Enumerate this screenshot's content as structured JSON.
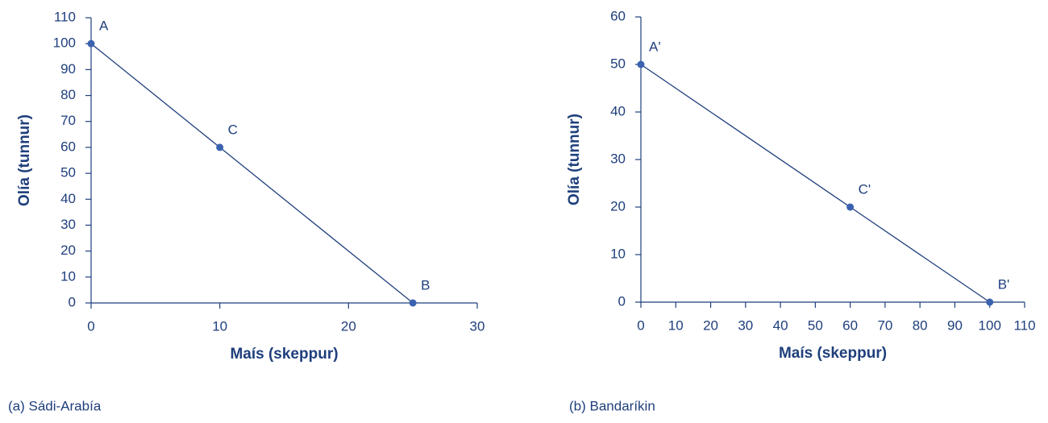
{
  "chart_data": [
    {
      "type": "line",
      "caption": "(a) Sádi-Arabía",
      "xlabel": "Maís (skeppur)",
      "ylabel": "Olía (tunnur)",
      "x": [
        0,
        10,
        25
      ],
      "values": [
        100,
        60,
        0
      ],
      "point_labels": [
        "A",
        "C",
        "B"
      ],
      "color": "#3a62b0",
      "line_color": "#1f3f7c",
      "xlim": [
        0,
        30
      ],
      "xticks": [
        0,
        10,
        20,
        30
      ],
      "ylim": [
        0,
        110
      ],
      "yticks": [
        0,
        10,
        20,
        30,
        40,
        50,
        60,
        70,
        80,
        90,
        100,
        110
      ]
    },
    {
      "type": "line",
      "caption": "(b) Bandaríkin",
      "xlabel": "Maís (skeppur)",
      "ylabel": "Olía (tunnur)",
      "x": [
        0,
        60,
        100
      ],
      "values": [
        50,
        20,
        0
      ],
      "point_labels": [
        "A'",
        "C'",
        "B'"
      ],
      "color": "#3a62b0",
      "line_color": "#1f3f7c",
      "xlim": [
        0,
        110
      ],
      "xticks": [
        0,
        10,
        20,
        30,
        40,
        50,
        60,
        70,
        80,
        90,
        100,
        110
      ],
      "ylim": [
        0,
        60
      ],
      "yticks": [
        0,
        10,
        20,
        30,
        40,
        50,
        60
      ]
    }
  ]
}
